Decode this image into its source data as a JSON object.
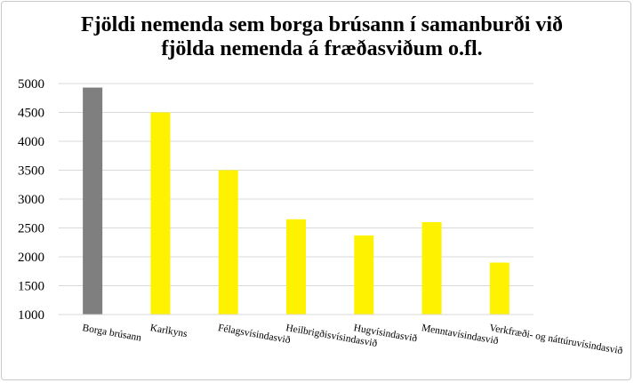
{
  "chart_data": {
    "type": "bar",
    "title_line1": "Fjöldi nemenda sem borga brúsann í samanburði við",
    "title_line2": "fjölda nemenda á fræðasviðum o.fl.",
    "xlabel": "",
    "ylabel": "",
    "ylim": [
      1000,
      5000
    ],
    "yticks": [
      "1000",
      "1500",
      "2000",
      "2500",
      "3000",
      "3500",
      "4000",
      "4500",
      "5000"
    ],
    "categories": [
      "Borga brúsann",
      "Karlkyns",
      "Félagsvísindasvið",
      "Heilbrigðisvísindasvið",
      "Hugvísindasvið",
      "Menntavísindasvið",
      "Verkfræði- og náttúruvísindasvið"
    ],
    "values": [
      4930,
      4500,
      3500,
      2650,
      2370,
      2600,
      1900
    ],
    "bar_colors": [
      "#7f7f7f",
      "#fff200",
      "#fff200",
      "#fff200",
      "#fff200",
      "#fff200",
      "#fff200"
    ],
    "grid": true,
    "legend": "none"
  }
}
